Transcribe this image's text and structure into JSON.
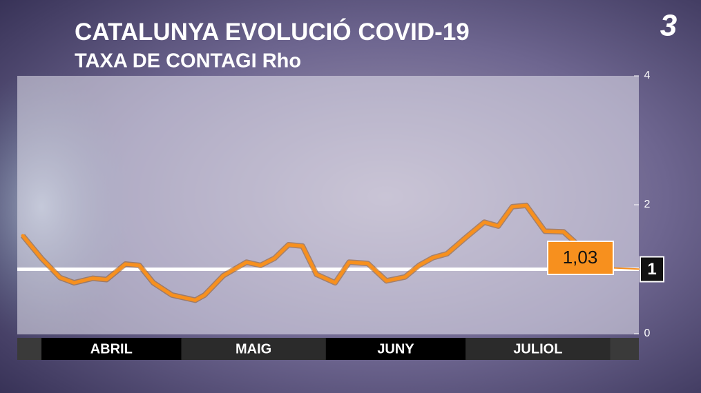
{
  "chart_data": {
    "type": "line",
    "title": "CATALUNYA EVOLUCIÓ",
    "title_highlight": "COVID-19",
    "subtitle": "TAXA DE CONTAGI Rho",
    "logo": "3",
    "categories": [
      "ABRIL",
      "MAIG",
      "JUNY",
      "JULIOL"
    ],
    "x": [
      "03-28",
      "04-01",
      "04-05",
      "04-08",
      "04-12",
      "04-15",
      "04-19",
      "04-22",
      "04-25",
      "04-29",
      "05-04",
      "05-06",
      "05-10",
      "05-15",
      "05-18",
      "05-21",
      "05-24",
      "05-27",
      "05-30",
      "06-03",
      "06-06",
      "06-10",
      "06-14",
      "06-18",
      "06-21",
      "06-24",
      "06-27",
      "07-01",
      "07-05",
      "07-08",
      "07-11",
      "07-14",
      "07-18",
      "07-22",
      "07-24",
      "07-30"
    ],
    "series": [
      {
        "name": "Rho",
        "color": "#f7901e",
        "values": [
          1.52,
          1.17,
          0.87,
          0.79,
          0.86,
          0.84,
          1.08,
          1.06,
          0.79,
          0.6,
          0.52,
          0.6,
          0.9,
          1.11,
          1.06,
          1.17,
          1.38,
          1.36,
          0.92,
          0.79,
          1.11,
          1.09,
          0.82,
          0.88,
          1.06,
          1.18,
          1.24,
          1.49,
          1.73,
          1.67,
          1.97,
          1.99,
          1.59,
          1.58,
          1.45,
          1.03
        ],
        "value_labels": {
          "35": "1,03"
        }
      }
    ],
    "reference": 1,
    "ylim": [
      0,
      4
    ],
    "yticks": [
      0,
      2,
      4
    ]
  }
}
